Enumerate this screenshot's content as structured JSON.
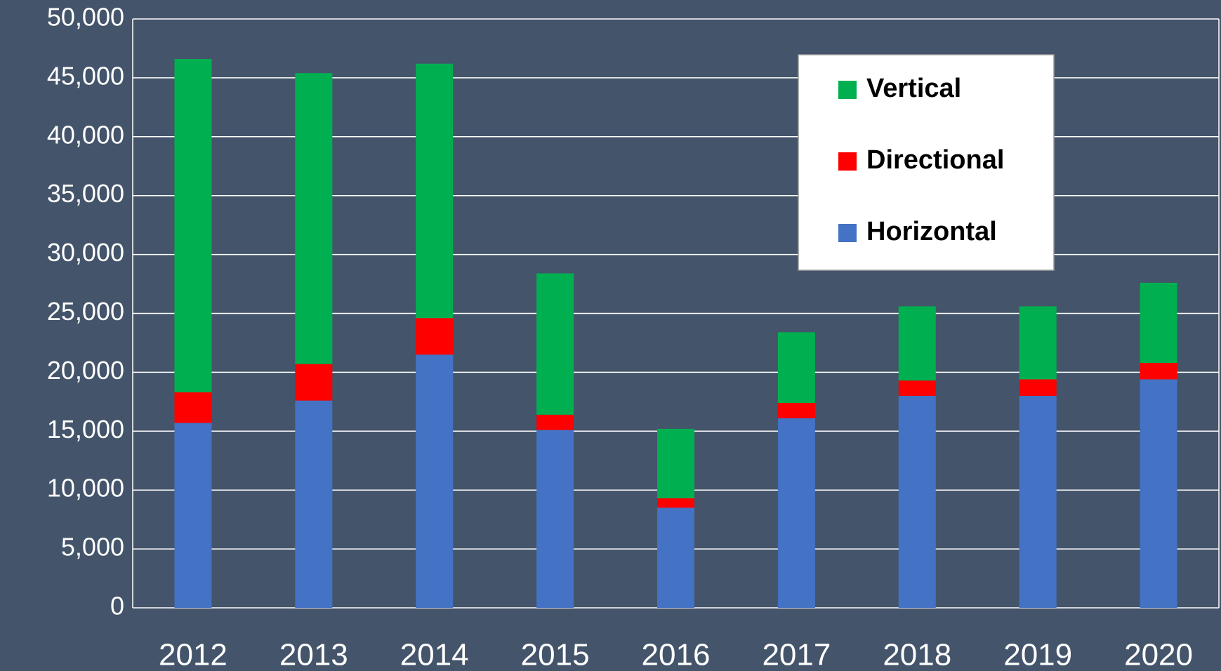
{
  "chart_data": {
    "type": "stacked_bar",
    "categories": [
      "2012",
      "2013",
      "2014",
      "2015",
      "2016",
      "2017",
      "2018",
      "2019",
      "2020"
    ],
    "series": [
      {
        "name": "Horizontal",
        "color": "#4472c4",
        "values": [
          15700,
          17600,
          21500,
          15100,
          8500,
          16100,
          18000,
          18000,
          19400
        ]
      },
      {
        "name": "Directional",
        "color": "#ff0000",
        "values": [
          2600,
          3100,
          3100,
          1300,
          800,
          1300,
          1300,
          1400,
          1400
        ]
      },
      {
        "name": "Vertical",
        "color": "#00b050",
        "values": [
          28300,
          24700,
          21600,
          12000,
          5900,
          6000,
          6300,
          6200,
          6800
        ]
      }
    ],
    "ylim": [
      0,
      50000
    ],
    "yticks": [
      0,
      {
        "value": 5000,
        "label": "5,000"
      },
      {
        "value": 10000,
        "label": "10,000"
      },
      {
        "value": 15000,
        "label": "15,000"
      },
      {
        "value": 20000,
        "label": "20,000"
      },
      {
        "value": 25000,
        "label": "25,000"
      },
      {
        "value": 30000,
        "label": "30,000"
      },
      {
        "value": 35000,
        "label": "35,000"
      },
      {
        "value": 40000,
        "label": "40,000"
      },
      {
        "value": 45000,
        "label": "45,000"
      },
      {
        "value": 50000,
        "label": "50,000"
      }
    ],
    "grid": true,
    "legend": "upper right"
  }
}
